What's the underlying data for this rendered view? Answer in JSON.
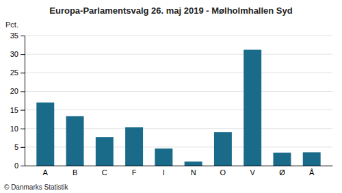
{
  "chart_data": {
    "type": "bar",
    "title": "Europa-Parlamentsvalg 26. maj 2019 - Mølholmhallen Syd",
    "ylabel": "Pct.",
    "footer": "© Danmarks Statistik",
    "categories": [
      "A",
      "B",
      "C",
      "F",
      "I",
      "N",
      "O",
      "V",
      "Ø",
      "Å"
    ],
    "values": [
      17.0,
      13.3,
      7.7,
      10.3,
      4.6,
      1.1,
      9.0,
      31.2,
      3.5,
      3.6
    ],
    "color": "#1a6b8a",
    "ylim": [
      0,
      35
    ],
    "yticks": [
      0,
      5,
      10,
      15,
      20,
      25,
      30,
      35
    ],
    "grid": true
  }
}
